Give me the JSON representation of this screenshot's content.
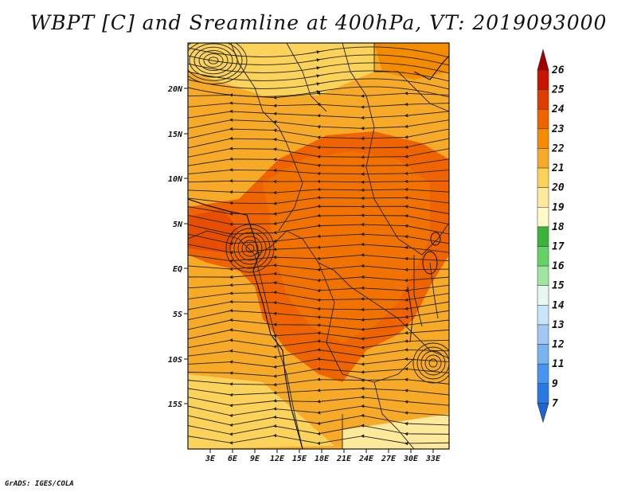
{
  "title": "WBPT [C] and Sreamline at 400hPa, VT: 2019093000",
  "footer": "GrADS: IGES/COLA",
  "map": {
    "lat_labels": [
      "20N",
      "15N",
      "10N",
      "5N",
      "EQ",
      "5S",
      "10S",
      "15S"
    ],
    "lon_labels": [
      "3E",
      "6E",
      "9E",
      "12E",
      "15E",
      "18E",
      "21E",
      "24E",
      "27E",
      "30E",
      "33E"
    ]
  },
  "colorbar": {
    "labels": [
      "26",
      "25",
      "24",
      "23",
      "22",
      "21",
      "20",
      "19",
      "18",
      "17",
      "16",
      "15",
      "14",
      "13",
      "12",
      "11",
      "9",
      "7"
    ],
    "colors": [
      "#a50000",
      "#c81400",
      "#e03c00",
      "#f06400",
      "#f58c00",
      "#f7aa28",
      "#fbd25a",
      "#fde99c",
      "#fffbc8",
      "#3cb43c",
      "#64d264",
      "#a0e6a0",
      "#e6f8f0",
      "#c8e6fa",
      "#a0c8f0",
      "#78b4f0",
      "#4696f0",
      "#2878e6",
      "#1e64d2"
    ]
  }
}
